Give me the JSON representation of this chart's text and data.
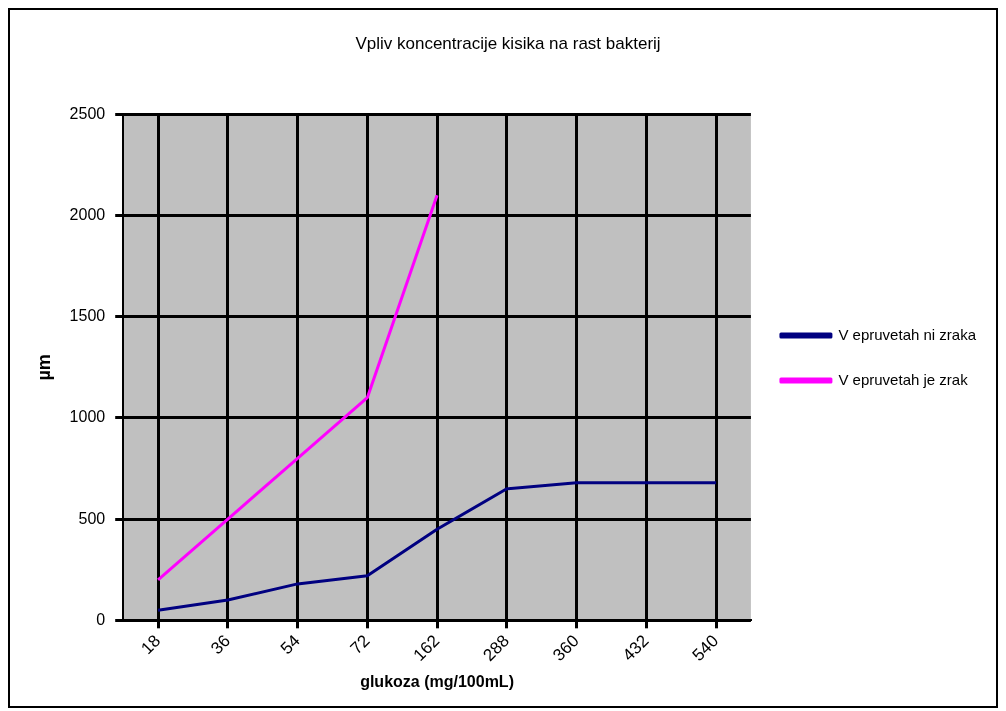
{
  "chart_data": {
    "type": "line",
    "title": "Vpliv koncentracije kisika na rast bakterij",
    "xlabel": "glukoza (mg/100mL)",
    "ylabel": "µm",
    "categories": [
      "18",
      "36",
      "54",
      "72",
      "162",
      "288",
      "360",
      "432",
      "540"
    ],
    "series": [
      {
        "name": "V epruvetah ni zraka",
        "color": "#000080",
        "values": [
          50,
          100,
          180,
          220,
          450,
          650,
          680,
          680,
          680
        ]
      },
      {
        "name": "V epruvetah je zrak",
        "color": "#ff00ff",
        "values": [
          200,
          500,
          800,
          1100,
          2100,
          null,
          null,
          null,
          null
        ]
      }
    ],
    "ylim": [
      0,
      2500
    ],
    "yticks": [
      0,
      500,
      1000,
      1500,
      2000,
      2500
    ],
    "grid": true,
    "legend": "right",
    "marker": "none",
    "line_style": "solid"
  }
}
